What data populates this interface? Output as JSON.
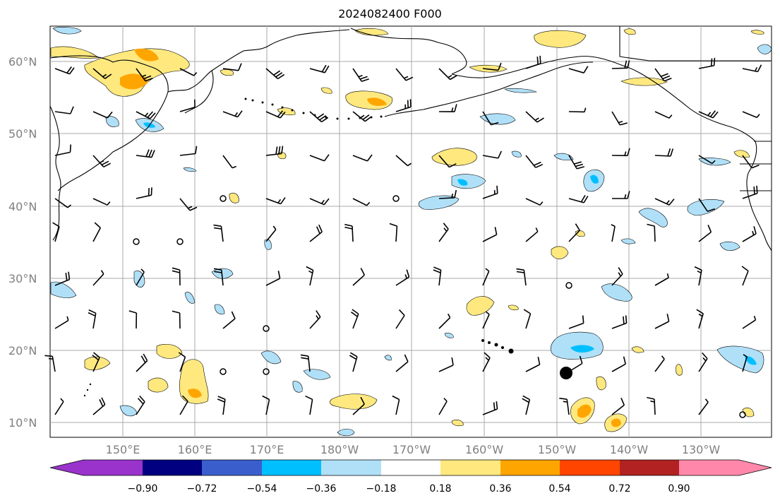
{
  "title": "2024082400 F000",
  "lat_labels": [
    "60°N",
    "50°N",
    "40°N",
    "30°N",
    "20°N",
    "10°N"
  ],
  "lon_labels": [
    "150°E",
    "160°E",
    "170°E",
    "180°W",
    "170°W",
    "160°W",
    "150°W",
    "140°W",
    "130°W"
  ],
  "colorbar": {
    "ticks": [
      "−0.90",
      "−0.72",
      "−0.54",
      "−0.36",
      "−0.18",
      "0.18",
      "0.36",
      "0.54",
      "0.72",
      "0.90"
    ],
    "colors": [
      "#9933cc",
      "#000080",
      "#3a5fcd",
      "#00bfff",
      "#b0e0f8",
      "#ffffff",
      "#ffe97f",
      "#ffa500",
      "#ff4500",
      "#b22222",
      "#ff88aa"
    ]
  },
  "colors": {
    "gridline": "#aaaaaa",
    "coastline": "#000000",
    "positive_light": "#ffe97f",
    "positive_mid": "#ffa500",
    "negative_light": "#b0e0f8",
    "negative_mid": "#00bfff"
  }
}
